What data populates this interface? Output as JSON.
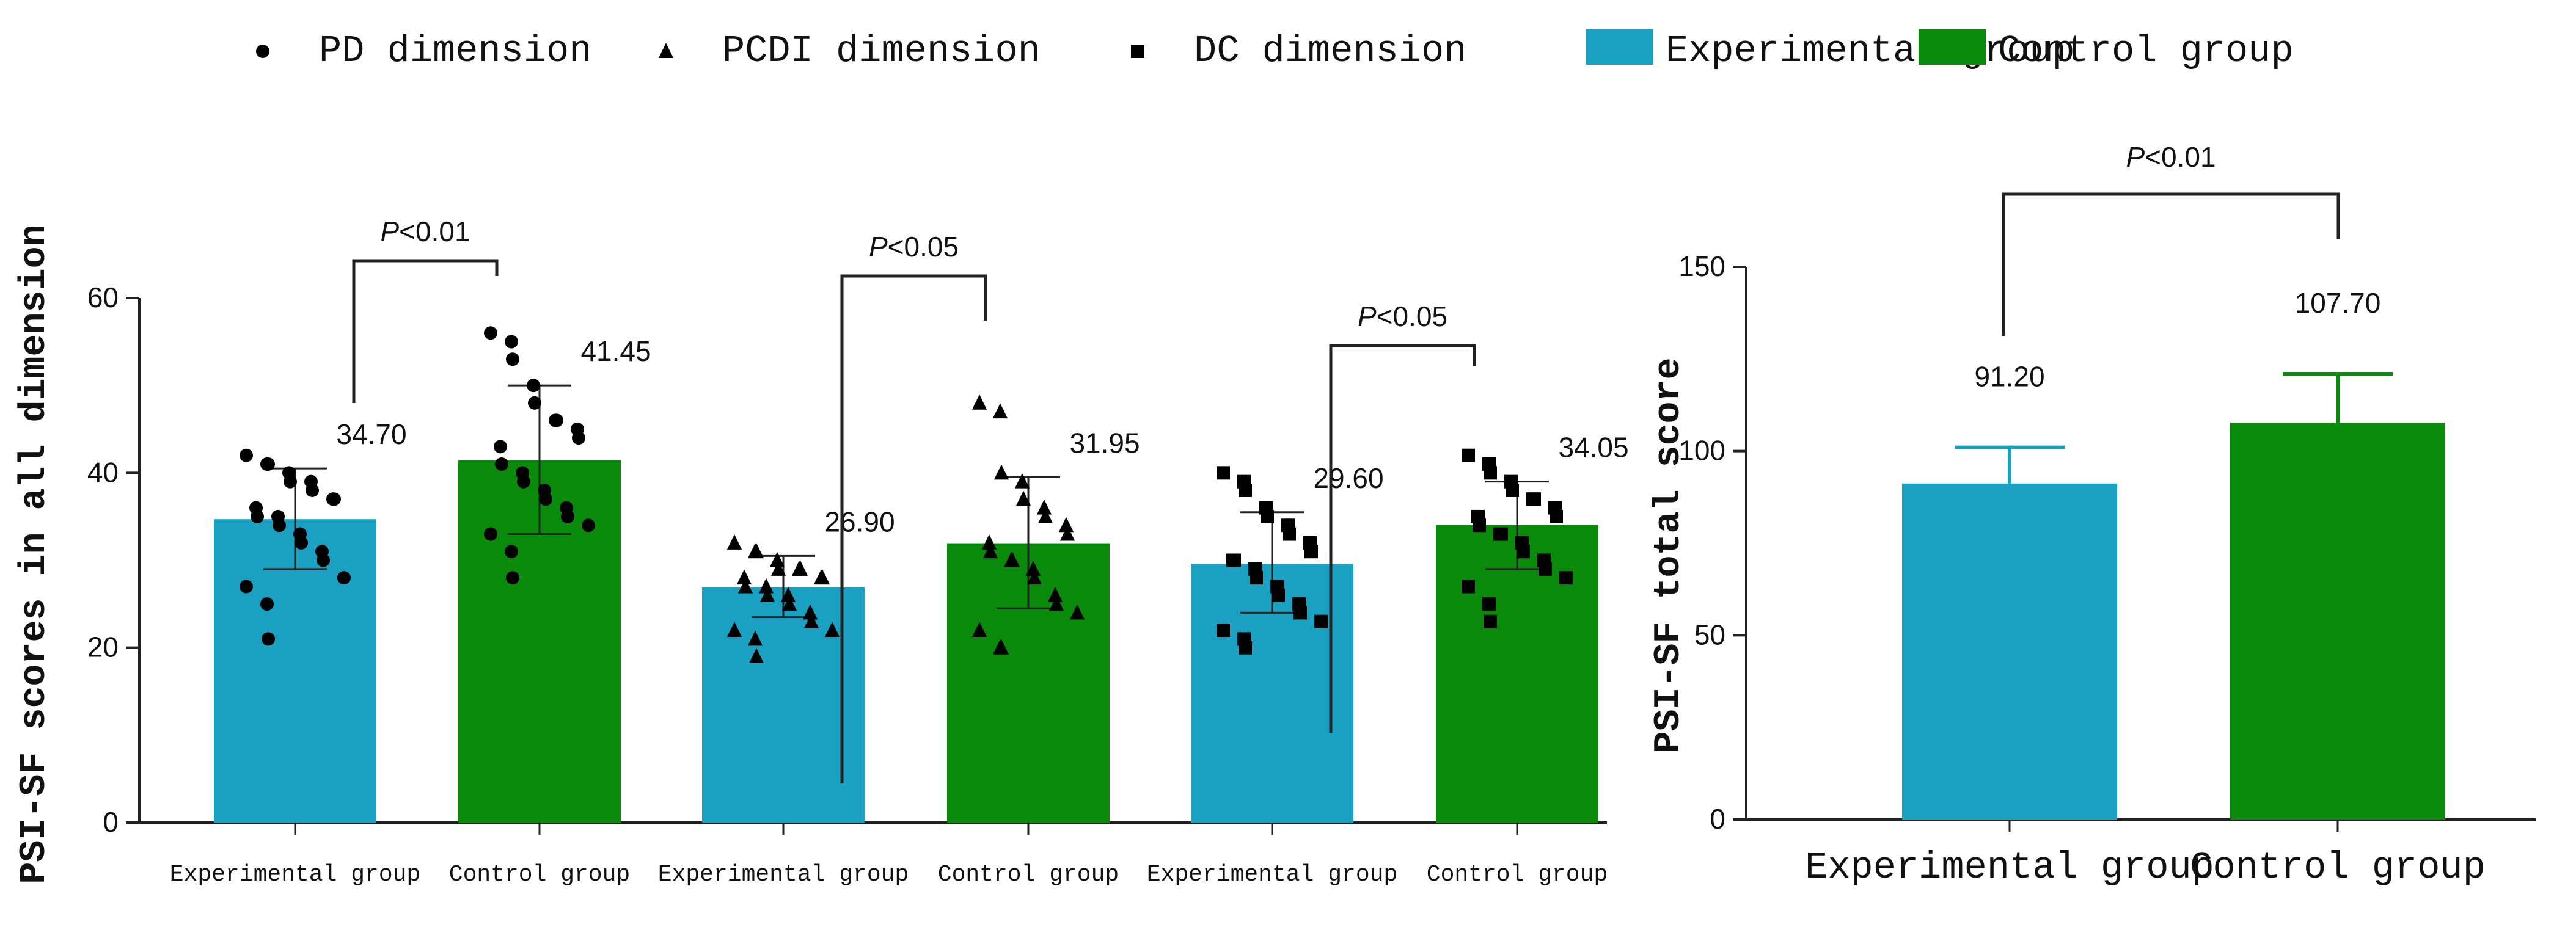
{
  "legend": {
    "markers": [
      {
        "label": "PD dimension",
        "shape": "circle"
      },
      {
        "label": "PCDI dimension",
        "shape": "triangle"
      },
      {
        "label": "DC dimension",
        "shape": "square"
      }
    ],
    "groups": [
      {
        "label": "Experimental group",
        "color": "#1aa0c0"
      },
      {
        "label": "Control group",
        "color": "#0a8a0a"
      }
    ]
  },
  "colors": {
    "experimental": "#1aa0c0",
    "control": "#0a8a0a",
    "axis": "#222222",
    "points": "#000000"
  },
  "chart_data": [
    {
      "type": "bar",
      "title": "",
      "ylabel": "PSI-SF scores in all dimension",
      "xlabel": "",
      "ylim": [
        0,
        60
      ],
      "yticks": [
        0,
        20,
        40,
        60
      ],
      "categories": [
        "Experimental group",
        "Control group",
        "Experimental group",
        "Control group",
        "Experimental group",
        "Control group"
      ],
      "bars": [
        {
          "label": "Experimental group",
          "dimension": "PD",
          "marker": "circle",
          "group": "experimental",
          "mean": 34.7,
          "mean_label": "34.70",
          "sd_low": 29,
          "sd_high": 40.5,
          "points": [
            42,
            41,
            41,
            40,
            39,
            39,
            38,
            37,
            37,
            36,
            35,
            35,
            34,
            33,
            32,
            31,
            30,
            28,
            27,
            25,
            21
          ]
        },
        {
          "label": "Control group",
          "dimension": "PD",
          "marker": "circle",
          "group": "control",
          "mean": 41.45,
          "mean_label": "41.45",
          "sd_low": 33,
          "sd_high": 50,
          "points": [
            56,
            55,
            53,
            50,
            48,
            46,
            46,
            45,
            44,
            43,
            41,
            40,
            39,
            38,
            37,
            36,
            35,
            34,
            33,
            31,
            28
          ]
        },
        {
          "label": "Experimental group",
          "dimension": "PCDI",
          "marker": "triangle",
          "group": "experimental",
          "mean": 26.9,
          "mean_label": "26.90",
          "sd_low": 23.5,
          "sd_high": 30.5,
          "points": [
            32,
            31,
            31,
            30,
            29,
            29,
            29,
            28,
            28,
            28,
            27,
            27,
            26,
            26,
            25,
            24,
            23,
            22,
            22,
            21,
            19
          ]
        },
        {
          "label": "Control group",
          "dimension": "PCDI",
          "marker": "triangle",
          "group": "control",
          "mean": 31.95,
          "mean_label": "31.95",
          "sd_low": 24.5,
          "sd_high": 39.5,
          "points": [
            48,
            47,
            40,
            39,
            37,
            36,
            35,
            34,
            33,
            32,
            31,
            30,
            30,
            29,
            28,
            26,
            25,
            24,
            22,
            20,
            20
          ]
        },
        {
          "label": "Experimental group",
          "dimension": "DC",
          "marker": "square",
          "group": "experimental",
          "mean": 29.6,
          "mean_label": "29.60",
          "sd_low": 24,
          "sd_high": 35.5,
          "points": [
            40,
            39,
            38,
            36,
            35,
            34,
            33,
            32,
            31,
            30,
            30,
            29,
            28,
            27,
            26,
            25,
            24,
            23,
            22,
            21,
            20
          ]
        },
        {
          "label": "Control group",
          "dimension": "DC",
          "marker": "square",
          "group": "control",
          "mean": 34.05,
          "mean_label": "34.05",
          "sd_low": 29,
          "sd_high": 39,
          "points": [
            42,
            41,
            40,
            39,
            38,
            37,
            37,
            36,
            35,
            35,
            34,
            33,
            33,
            32,
            31,
            30,
            29,
            28,
            27,
            25,
            23
          ]
        }
      ],
      "significance": [
        {
          "from": 0,
          "to": 1,
          "text": "<0.01"
        },
        {
          "from": 2,
          "to": 3,
          "text": "<0.05"
        },
        {
          "from": 4,
          "to": 5,
          "text": "<0.05"
        }
      ]
    },
    {
      "type": "bar",
      "title": "",
      "ylabel": "PSI-SF total score",
      "xlabel": "",
      "ylim": [
        0,
        150
      ],
      "yticks": [
        0,
        50,
        100,
        150
      ],
      "categories": [
        "Experimental group",
        "Control group"
      ],
      "bars": [
        {
          "label": "Experimental group",
          "group": "experimental",
          "mean": 91.2,
          "mean_label": "91.20",
          "sd_high": 101
        },
        {
          "label": "Control group",
          "group": "control",
          "mean": 107.7,
          "mean_label": "107.70",
          "sd_high": 121
        }
      ],
      "significance": [
        {
          "from": 0,
          "to": 1,
          "text": "<0.01"
        }
      ]
    }
  ]
}
